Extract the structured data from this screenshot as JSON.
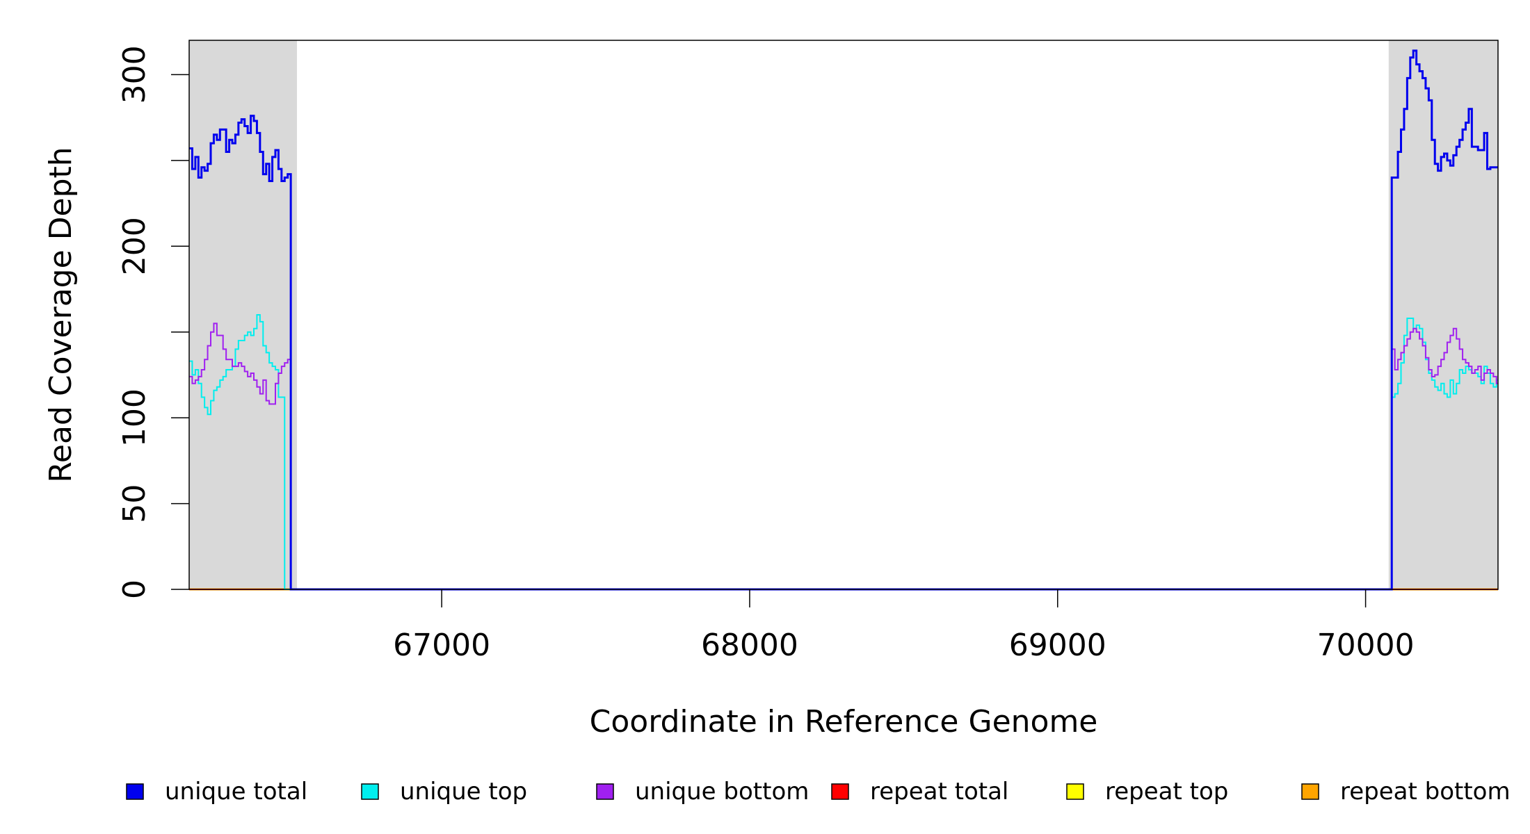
{
  "chart_data": {
    "type": "line",
    "title": "",
    "xlabel": "Coordinate in Reference Genome",
    "ylabel": "Read Coverage Depth",
    "xlim": [
      66180,
      70430
    ],
    "ylim": [
      0,
      320
    ],
    "x_ticks": [
      67000,
      68000,
      69000,
      70000
    ],
    "x_tick_labels": [
      "67000",
      "68000",
      "69000",
      "70000"
    ],
    "y_ticks": [
      0,
      50,
      100,
      150,
      200,
      250,
      300
    ],
    "y_tick_labels": [
      "0",
      "50",
      "100",
      "",
      "200",
      "",
      "300"
    ],
    "shaded_regions": [
      {
        "x0": 66180,
        "x1": 66530,
        "color": "#d9d9d9"
      },
      {
        "x0": 70075,
        "x1": 70430,
        "color": "#d9d9d9"
      }
    ],
    "grid": false,
    "legend_position": "bottom",
    "series": [
      {
        "name": "unique total",
        "color": "#0000ee",
        "width": 3,
        "x": [
          66180,
          66190,
          66200,
          66210,
          66220,
          66230,
          66240,
          66250,
          66260,
          66270,
          66280,
          66290,
          66300,
          66310,
          66320,
          66330,
          66340,
          66350,
          66360,
          66370,
          66380,
          66390,
          66400,
          66410,
          66420,
          66430,
          66440,
          66450,
          66460,
          66470,
          66480,
          66490,
          66500,
          66510,
          66520,
          66530,
          66531,
          70074,
          70075,
          70085,
          70095,
          70105,
          70115,
          70125,
          70135,
          70145,
          70155,
          70165,
          70175,
          70185,
          70195,
          70205,
          70215,
          70225,
          70235,
          70245,
          70255,
          70265,
          70275,
          70285,
          70295,
          70305,
          70315,
          70325,
          70335,
          70345,
          70355,
          70365,
          70375,
          70385,
          70395,
          70405,
          70415,
          70425,
          70430
        ],
        "y": [
          257,
          245,
          252,
          240,
          246,
          244,
          248,
          260,
          265,
          262,
          268,
          268,
          255,
          262,
          260,
          265,
          272,
          274,
          270,
          266,
          276,
          273,
          266,
          255,
          242,
          248,
          238,
          252,
          256,
          245,
          238,
          240,
          242,
          0,
          0,
          0,
          0,
          0,
          0,
          240,
          240,
          255,
          268,
          280,
          298,
          310,
          314,
          306,
          302,
          298,
          292,
          285,
          262,
          248,
          244,
          252,
          254,
          250,
          247,
          253,
          258,
          262,
          268,
          272,
          280,
          258,
          258,
          256,
          256,
          266,
          245,
          246,
          246,
          246,
          246
        ]
      },
      {
        "name": "unique top",
        "color": "#00eeee",
        "width": 2,
        "x": [
          66180,
          66190,
          66200,
          66210,
          66220,
          66230,
          66240,
          66250,
          66260,
          66270,
          66280,
          66290,
          66300,
          66310,
          66320,
          66330,
          66340,
          66350,
          66360,
          66370,
          66380,
          66390,
          66400,
          66410,
          66420,
          66430,
          66440,
          66450,
          66460,
          66470,
          66480,
          66490,
          66500,
          66510,
          66520,
          66530,
          66531,
          70074,
          70075,
          70085,
          70095,
          70105,
          70115,
          70125,
          70135,
          70145,
          70155,
          70165,
          70175,
          70185,
          70195,
          70205,
          70215,
          70225,
          70235,
          70245,
          70255,
          70265,
          70275,
          70285,
          70295,
          70305,
          70315,
          70325,
          70335,
          70345,
          70355,
          70365,
          70375,
          70385,
          70395,
          70405,
          70415,
          70425,
          70430
        ],
        "y": [
          133,
          125,
          128,
          120,
          112,
          106,
          102,
          110,
          116,
          118,
          122,
          124,
          128,
          128,
          130,
          140,
          145,
          145,
          148,
          150,
          148,
          152,
          160,
          156,
          142,
          138,
          132,
          130,
          128,
          112,
          112,
          0,
          0,
          0,
          0,
          0,
          0,
          0,
          0,
          112,
          114,
          120,
          132,
          148,
          158,
          158,
          152,
          154,
          152,
          144,
          134,
          126,
          122,
          118,
          116,
          120,
          114,
          112,
          122,
          114,
          120,
          128,
          126,
          130,
          128,
          126,
          126,
          124,
          120,
          130,
          126,
          120,
          118,
          122,
          122
        ]
      },
      {
        "name": "unique bottom",
        "color": "#a020f0",
        "width": 2,
        "x": [
          66180,
          66190,
          66200,
          66210,
          66220,
          66230,
          66240,
          66250,
          66260,
          66270,
          66280,
          66290,
          66300,
          66310,
          66320,
          66330,
          66340,
          66350,
          66360,
          66370,
          66380,
          66390,
          66400,
          66410,
          66420,
          66430,
          66440,
          66450,
          66460,
          66470,
          66480,
          66490,
          66500,
          66510,
          66520,
          66530,
          66531,
          70074,
          70075,
          70085,
          70095,
          70105,
          70115,
          70125,
          70135,
          70145,
          70155,
          70165,
          70175,
          70185,
          70195,
          70205,
          70215,
          70225,
          70235,
          70245,
          70255,
          70265,
          70275,
          70285,
          70295,
          70305,
          70315,
          70325,
          70335,
          70345,
          70355,
          70365,
          70375,
          70385,
          70395,
          70405,
          70415,
          70425,
          70430
        ],
        "y": [
          124,
          120,
          122,
          124,
          128,
          134,
          142,
          150,
          155,
          148,
          148,
          140,
          134,
          134,
          130,
          130,
          132,
          130,
          127,
          124,
          126,
          122,
          118,
          114,
          122,
          110,
          108,
          108,
          120,
          126,
          130,
          132,
          134,
          0,
          0,
          0,
          0,
          0,
          0,
          140,
          128,
          134,
          138,
          142,
          146,
          150,
          152,
          150,
          146,
          142,
          135,
          128,
          124,
          125,
          130,
          134,
          138,
          144,
          148,
          152,
          146,
          140,
          134,
          132,
          130,
          126,
          128,
          130,
          122,
          126,
          128,
          126,
          124,
          120,
          120
        ]
      },
      {
        "name": "repeat total",
        "color": "#ff0000",
        "width": 2,
        "x": [
          66180,
          70430
        ],
        "y": [
          0,
          0
        ]
      },
      {
        "name": "repeat top",
        "color": "#ffff00",
        "width": 2,
        "x": [
          66180,
          70430
        ],
        "y": [
          0,
          0
        ]
      },
      {
        "name": "repeat bottom",
        "color": "#ffa500",
        "width": 3,
        "x": [
          66180,
          70430
        ],
        "y": [
          0,
          0
        ]
      }
    ]
  }
}
